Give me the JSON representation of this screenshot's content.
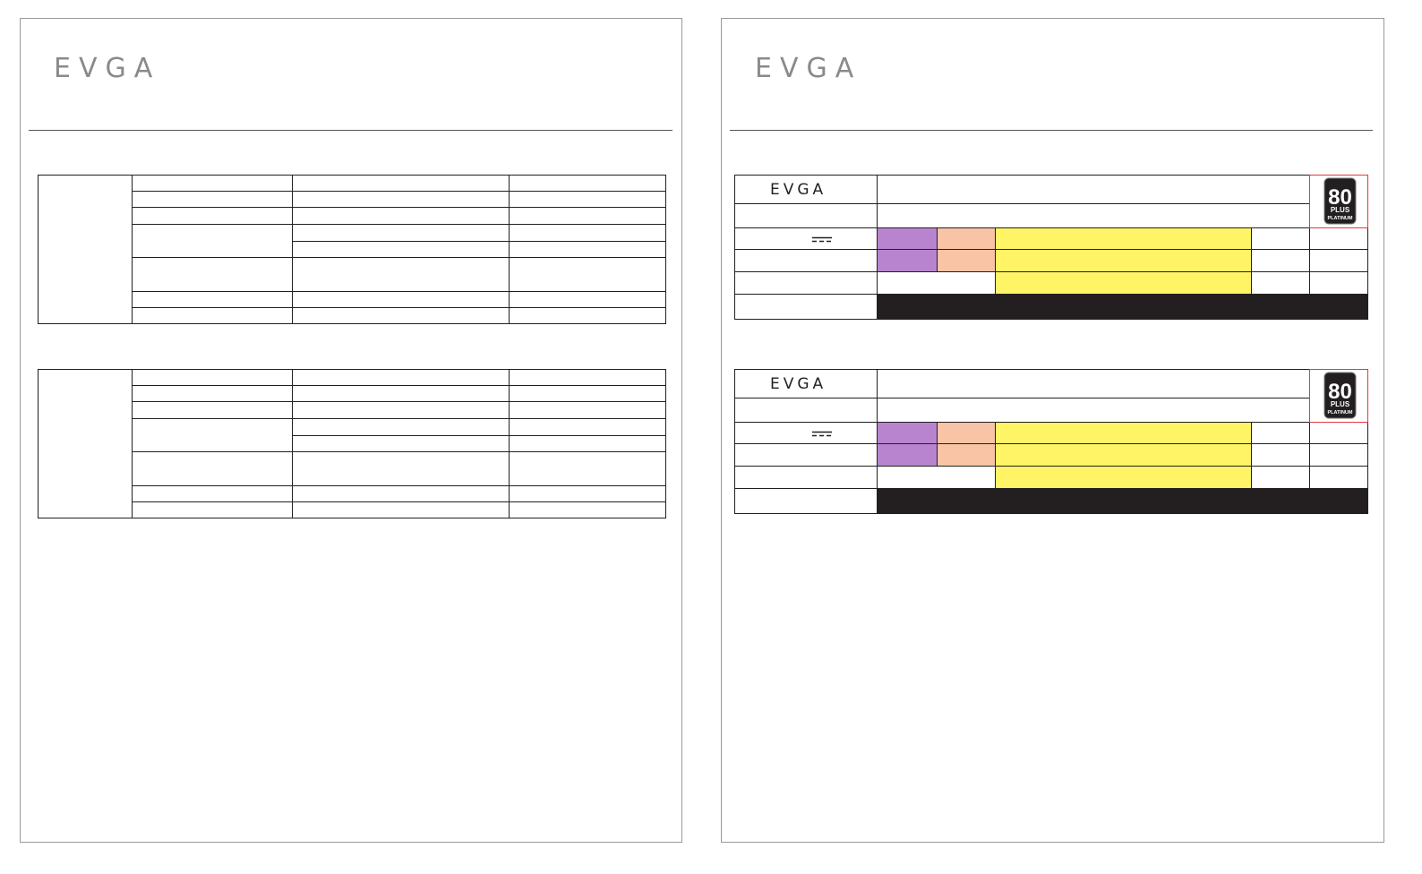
{
  "pages": [
    {
      "logo": "EVGA"
    },
    {
      "logo": "EVGA",
      "tables": [
        {
          "logo": "EVGA",
          "badge": {
            "number": "80",
            "line1": "PLUS",
            "line2": "PLATINUM"
          }
        },
        {
          "logo": "EVGA",
          "badge": {
            "number": "80",
            "line1": "PLUS",
            "line2": "PLATINUM"
          }
        }
      ]
    }
  ]
}
